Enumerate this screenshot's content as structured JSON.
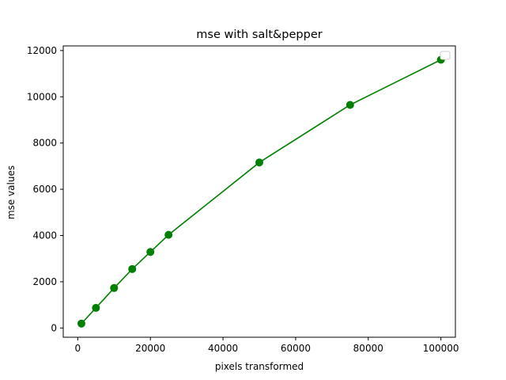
{
  "chart_data": {
    "type": "line",
    "title": "mse with salt&pepper",
    "xlabel": "pixels transformed",
    "ylabel": "mse values",
    "xlim": [
      -4000,
      104000
    ],
    "ylim": [
      -400,
      12200
    ],
    "xticks": [
      0,
      20000,
      40000,
      60000,
      80000,
      100000
    ],
    "yticks": [
      0,
      2000,
      4000,
      6000,
      8000,
      10000,
      12000
    ],
    "xtick_labels": [
      "0",
      "20000",
      "40000",
      "60000",
      "80000",
      "100000"
    ],
    "ytick_labels": [
      "0",
      "2000",
      "4000",
      "6000",
      "8000",
      "10000",
      "12000"
    ],
    "grid": false,
    "legend": {
      "location": "top-right",
      "entries": []
    },
    "series": [
      {
        "name": "",
        "color": "#008000",
        "marker": "circle",
        "x": [
          1000,
          5000,
          10000,
          15000,
          20000,
          25000,
          50000,
          75000,
          100000
        ],
        "y": [
          190,
          870,
          1730,
          2550,
          3290,
          4030,
          7160,
          9650,
          11600
        ]
      }
    ]
  }
}
